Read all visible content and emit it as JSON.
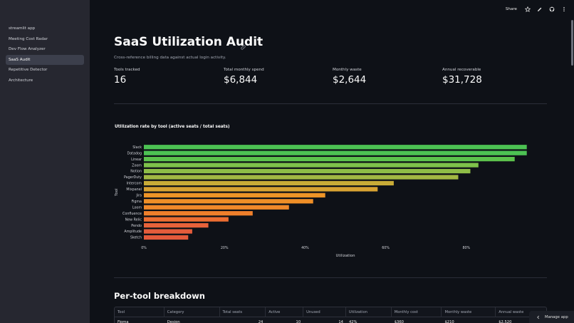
{
  "sidebar": {
    "items": [
      {
        "label": "streamlit app",
        "active": false
      },
      {
        "label": "Meeting Cost Radar",
        "active": false
      },
      {
        "label": "Dev Flow Analyzer",
        "active": false
      },
      {
        "label": "SaaS Audit",
        "active": true
      },
      {
        "label": "Repetitive Detector",
        "active": false
      },
      {
        "label": "Architecture",
        "active": false
      }
    ]
  },
  "topbar": {
    "share_label": "Share",
    "icons": [
      "star-icon",
      "edit-icon",
      "github-icon",
      "more-icon"
    ]
  },
  "page": {
    "title": "SaaS Utilization Audit",
    "subtitle": "Cross-reference billing data against actual login activity."
  },
  "metrics": [
    {
      "label": "Tools tracked",
      "value": "16"
    },
    {
      "label": "Total monthly spend",
      "value": "$6,844"
    },
    {
      "label": "Monthly waste",
      "value": "$2,644"
    },
    {
      "label": "Annual recoverable",
      "value": "$31,728"
    }
  ],
  "chart_data": {
    "type": "bar",
    "orientation": "horizontal",
    "title": "Utilization rate by tool (active seats / total seats)",
    "xlabel": "Utilization",
    "ylabel": "Tool",
    "xlim": [
      0,
      1
    ],
    "x_ticks": [
      {
        "value": 0,
        "label": "0%"
      },
      {
        "value": 0.2,
        "label": "20%"
      },
      {
        "value": 0.4,
        "label": "40%"
      },
      {
        "value": 0.6,
        "label": "60%"
      },
      {
        "value": 0.8,
        "label": "80%"
      }
    ],
    "grid": false,
    "categories": [
      "Slack",
      "Datadog",
      "Linear",
      "Zoom",
      "Notion",
      "PagerDuty",
      "Intercom",
      "Mixpanel",
      "Jira",
      "Figma",
      "Loom",
      "Confluence",
      "New Relic",
      "Pendo",
      "Amplitude",
      "Sketch"
    ],
    "values": [
      0.95,
      0.95,
      0.92,
      0.83,
      0.81,
      0.78,
      0.62,
      0.58,
      0.45,
      0.42,
      0.36,
      0.27,
      0.21,
      0.16,
      0.12,
      0.11
    ],
    "colors": [
      "#4cc253",
      "#4cc253",
      "#5cc24c",
      "#7ec24a",
      "#8ebd47",
      "#a2b843",
      "#c8ab37",
      "#d7a232",
      "#ee9527",
      "#ef8f27",
      "#f0892a",
      "#ee7f2b",
      "#ec6d31",
      "#e8623a",
      "#e45c3b",
      "#e35a3b"
    ]
  },
  "breakdown": {
    "title": "Per-tool breakdown",
    "columns": [
      "Tool",
      "Category",
      "Total seats",
      "Active",
      "Unused",
      "Utilization",
      "Monthly cost",
      "Monthly waste",
      "Annual waste"
    ],
    "rows": [
      [
        "Figma",
        "Design",
        "24",
        "10",
        "14",
        "42%",
        "$360",
        "$210",
        "$2,520"
      ]
    ]
  },
  "manage": {
    "label": "Manage app"
  }
}
